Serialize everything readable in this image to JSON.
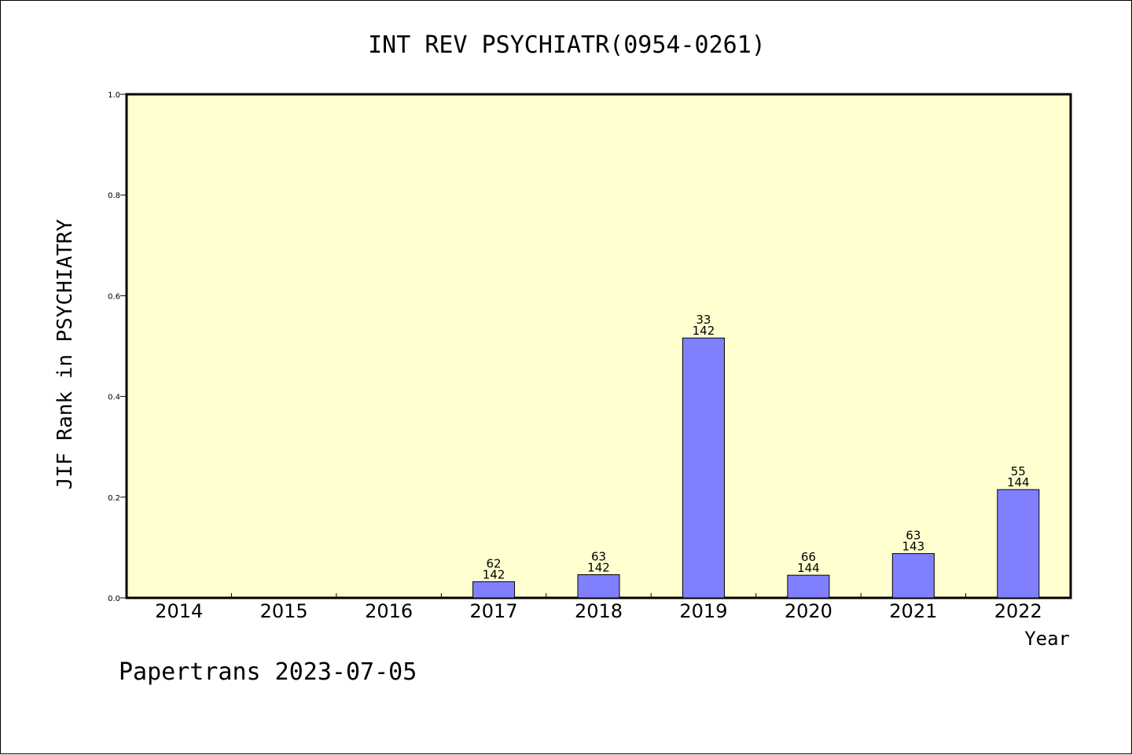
{
  "chart_data": {
    "type": "bar",
    "title": "INT REV PSYCHIATR(0954-0261)",
    "xlabel": "Year",
    "ylabel": "JIF Rank in PSYCHIATRY",
    "ylim": [
      0,
      1.0
    ],
    "yticks": [
      "0.0",
      "0.2",
      "0.4",
      "0.6",
      "0.8",
      "1.0"
    ],
    "grid": false,
    "categories": [
      "2014",
      "2015",
      "2016",
      "2017",
      "2018",
      "2019",
      "2020",
      "2021",
      "2022"
    ],
    "values": [
      null,
      null,
      null,
      0.032,
      0.046,
      0.516,
      0.045,
      0.088,
      0.215
    ],
    "rank_labels": [
      "",
      "",
      "",
      "62",
      "63",
      "33",
      "66",
      "63",
      "55"
    ],
    "total_labels": [
      "",
      "",
      "",
      "142",
      "142",
      "142",
      "144",
      "143",
      "144"
    ],
    "colors": {
      "plot_background": "#ffffd0",
      "bar_fill": "#8080ff",
      "bar_stroke": "#000000"
    }
  },
  "footer": {
    "text": "Papertrans 2023-07-05"
  }
}
